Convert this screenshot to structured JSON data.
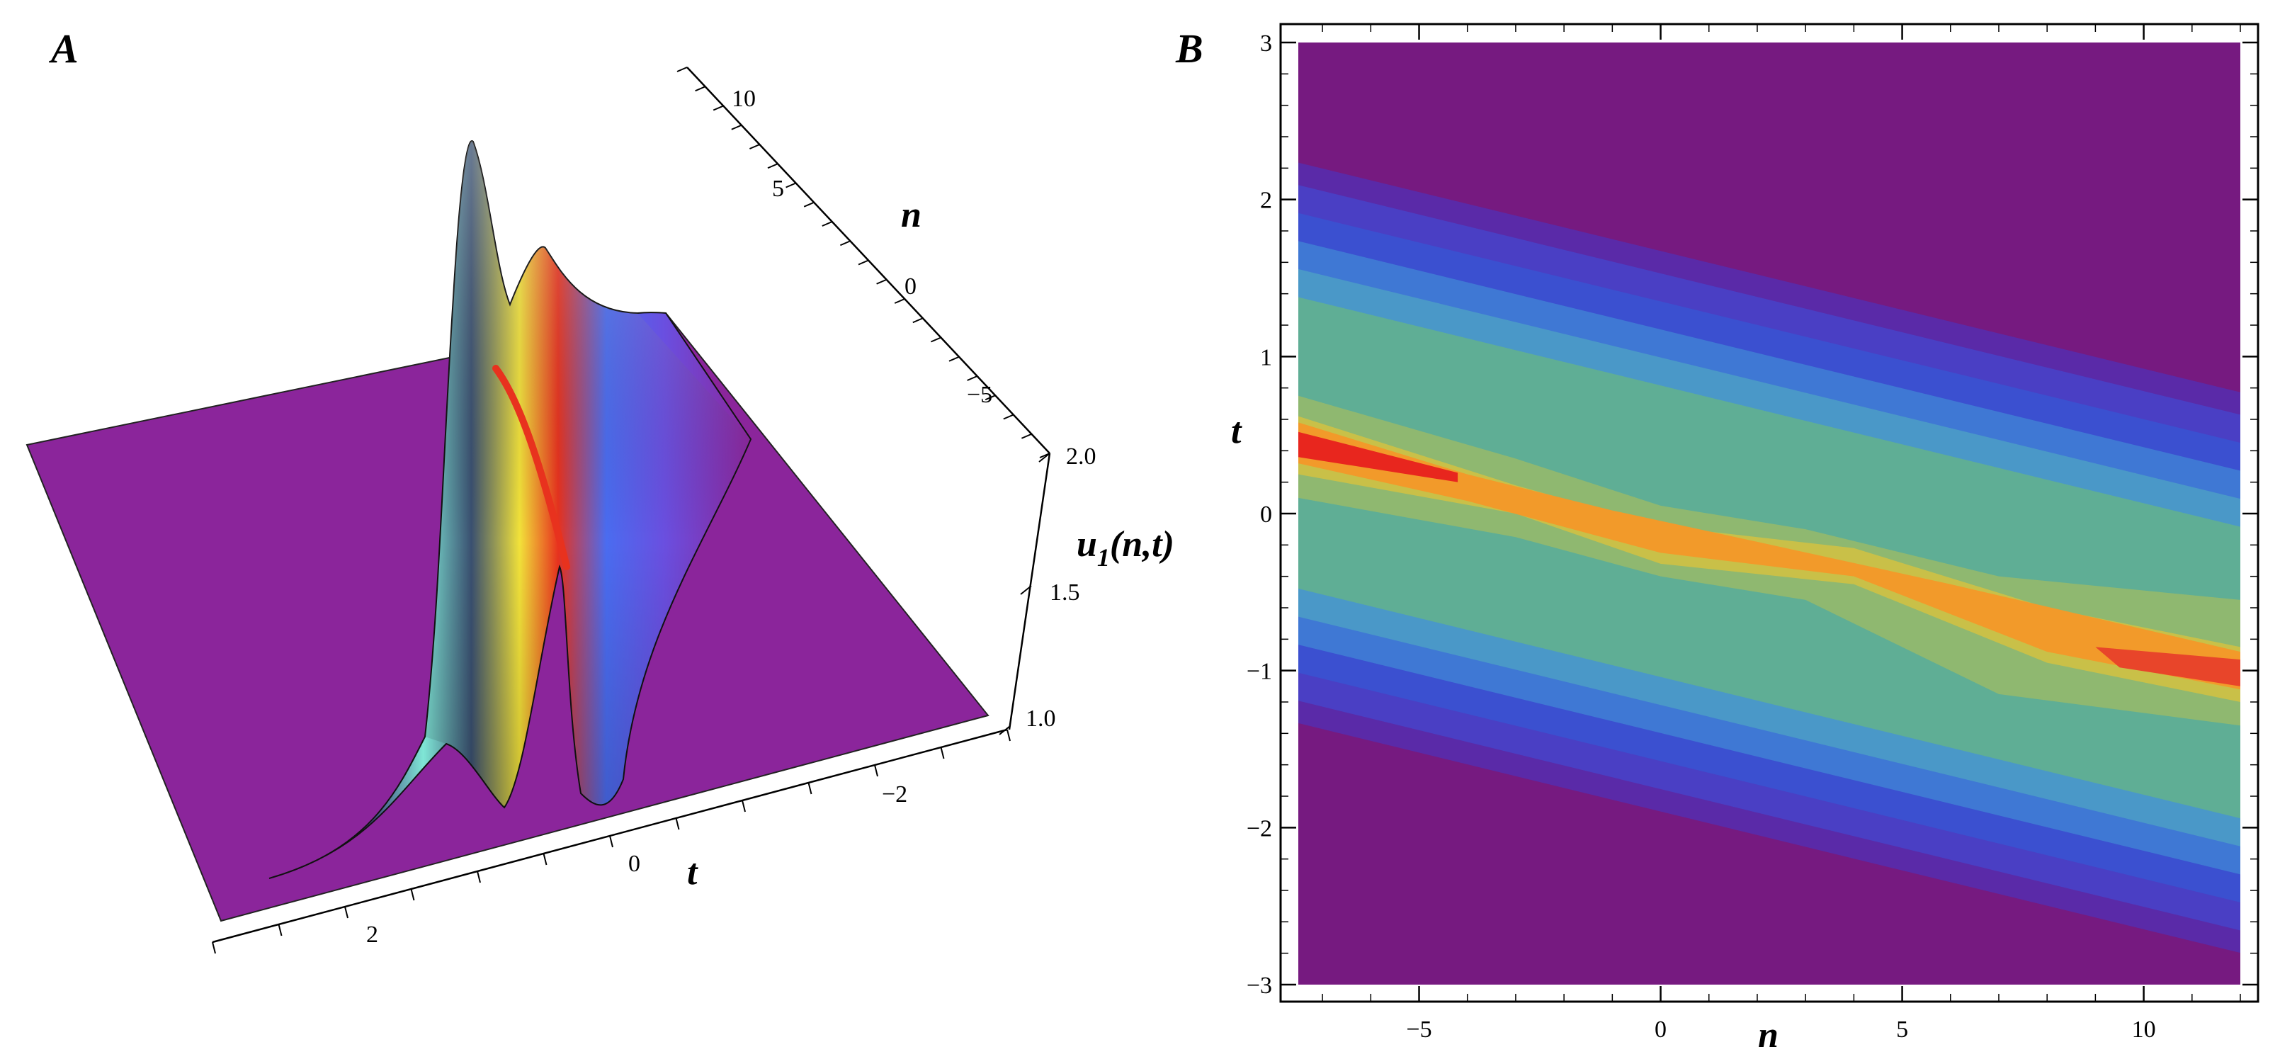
{
  "chart_data": [
    {
      "panel": "A",
      "type": "surface3d",
      "title": "",
      "xlabel": "t",
      "ylabel": "n",
      "zlabel_main": "u",
      "zlabel_sub": "1",
      "zlabel_args": "(n,t)",
      "x_ticks": [
        "2",
        "0",
        "−2"
      ],
      "y_ticks": [
        "10",
        "5",
        "0",
        "−5"
      ],
      "z_ticks": [
        "2.0",
        "1.5",
        "1.0"
      ],
      "t_range": [
        -3,
        3
      ],
      "n_range": [
        -7,
        12
      ],
      "z_range": [
        1.0,
        2.0
      ],
      "colors": {
        "background": "#8b259b",
        "red": "#e8321e",
        "orange": "#f0a020",
        "yellow": "#f2e23a",
        "cyan": "#7fe6d6",
        "blue": "#4a6cf0"
      }
    },
    {
      "panel": "B",
      "type": "heatmap",
      "title": "",
      "xlabel": "n",
      "ylabel": "t",
      "xlim": [
        -7.5,
        12
      ],
      "ylim": [
        -3,
        3
      ],
      "x_ticks": [
        -5,
        0,
        5,
        10
      ],
      "y_ticks": [
        3,
        2,
        1,
        0,
        -1,
        -2,
        -3
      ],
      "x_tick_labels": [
        "−5",
        "0",
        "5",
        "10"
      ],
      "y_tick_labels": [
        "3",
        "2",
        "1",
        "0",
        "−1",
        "−2",
        "−3"
      ],
      "band": {
        "t_center_at_n_min": 0.45,
        "slope": -0.075,
        "half_width": 1.05
      },
      "colors": {
        "background": "#761a80",
        "red": "#e8261e",
        "orange": "#f29a2a",
        "yellow": "#d6c23a",
        "green": "#5fae95",
        "blue": "#3b50d0"
      }
    }
  ]
}
